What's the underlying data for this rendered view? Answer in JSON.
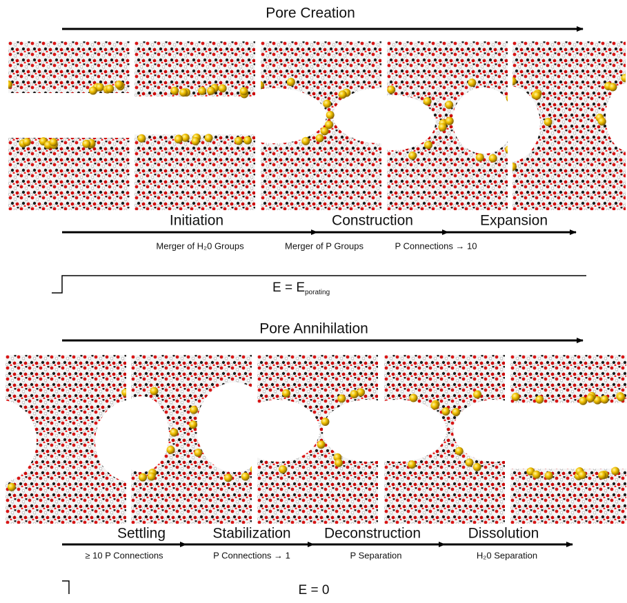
{
  "creation": {
    "title": "Pore Creation",
    "stages": [
      {
        "name": "Initiation",
        "detail": "Merger of H₂0 Groups"
      },
      {
        "name": "Construction",
        "detail": "Merger of P Groups"
      },
      {
        "name": "Expansion",
        "detail": "P Connections → 10"
      }
    ],
    "energy": {
      "text": "E = E",
      "subscript": "porating"
    }
  },
  "annihilation": {
    "title": "Pore Annihilation",
    "stages": [
      {
        "name": "Settling",
        "detail": "≥ 10 P Connections"
      },
      {
        "name": "Stabilization",
        "detail": "P Connections → 1"
      },
      {
        "name": "Deconstruction",
        "detail": "P Separation"
      },
      {
        "name": "Dissolution",
        "detail": "H₂0 Separation"
      }
    ],
    "energy": {
      "text": "E = 0"
    }
  }
}
